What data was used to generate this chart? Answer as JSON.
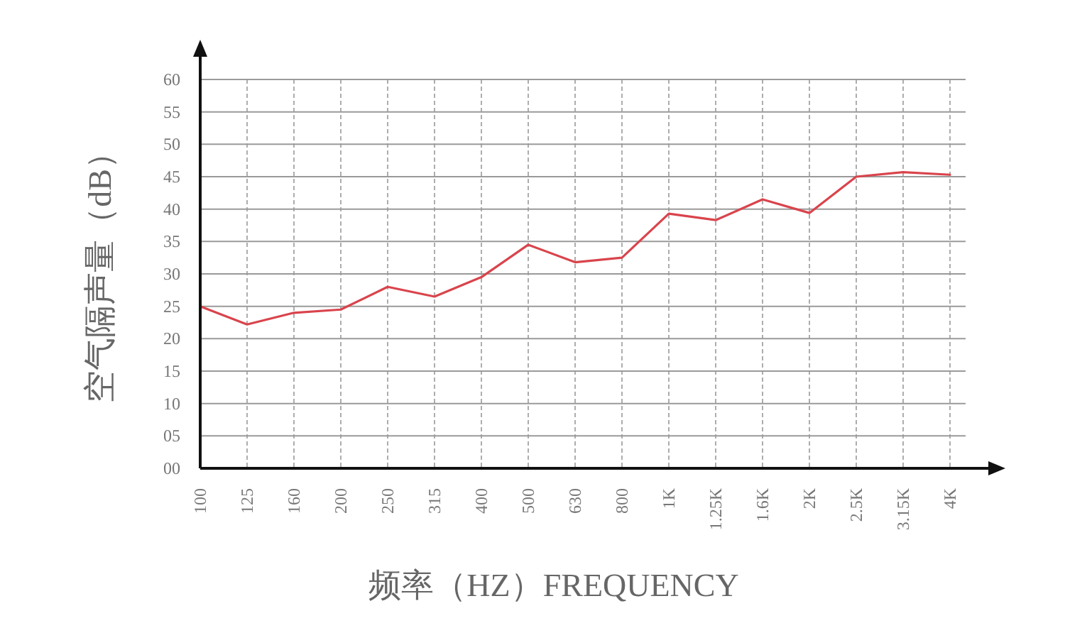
{
  "chart_data": {
    "type": "line",
    "xlabel": "频率（HZ）FREQUENCY",
    "ylabel": "空气隔声量（dB）",
    "categories": [
      "100",
      "125",
      "160",
      "200",
      "250",
      "315",
      "400",
      "500",
      "630",
      "800",
      "1K",
      "1.25K",
      "1.6K",
      "2K",
      "2.5K",
      "3.15K",
      "4K"
    ],
    "series": [
      {
        "color": "#d9444c",
        "values": [
          25,
          22.2,
          24,
          24.5,
          28,
          26.5,
          29.5,
          34.5,
          31.8,
          32.5,
          39.3,
          38.3,
          41.5,
          39.4,
          45,
          45.7,
          45.3
        ]
      }
    ],
    "ylim": [
      0,
      60
    ],
    "yticks": [
      {
        "value": 0,
        "label": "00"
      },
      {
        "value": 5,
        "label": "05"
      },
      10,
      15,
      20,
      25,
      30,
      35,
      40,
      45,
      50,
      55,
      60
    ],
    "grid": true
  }
}
